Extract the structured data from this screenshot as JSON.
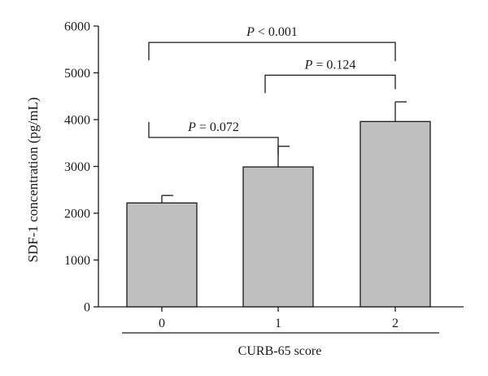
{
  "chart_data": {
    "type": "bar",
    "categories": [
      "0",
      "1",
      "2"
    ],
    "values": [
      2220,
      2990,
      3960
    ],
    "error_upper": [
      2380,
      3430,
      4380
    ],
    "ylabel": "SDF-1 concentration (pg/mL)",
    "xlabel": "CURB-65 score",
    "ylim": [
      0,
      6000
    ],
    "yticks": [
      "0",
      "1000",
      "2000",
      "3000",
      "4000",
      "5000",
      "6000"
    ],
    "bar_color": "#c0c0c0",
    "grid": false,
    "annotations": [
      {
        "from": "0",
        "to": "1",
        "p_symbol": "P",
        "p_text": " = 0.072",
        "bracket_y": 3620,
        "leg_from_y": 3950,
        "leg_to_y": 3620
      },
      {
        "from": "1",
        "to": "2",
        "p_symbol": "P",
        "p_text": " = 0.124",
        "bracket_y": 4950,
        "leg_from_y": 4950,
        "leg_to_y": 4650
      },
      {
        "from": "0",
        "to": "2",
        "p_symbol": "P",
        "p_text": " < 0.001",
        "bracket_y": 5650,
        "leg_from_y": 5650,
        "leg_to_y": 5250
      }
    ]
  }
}
